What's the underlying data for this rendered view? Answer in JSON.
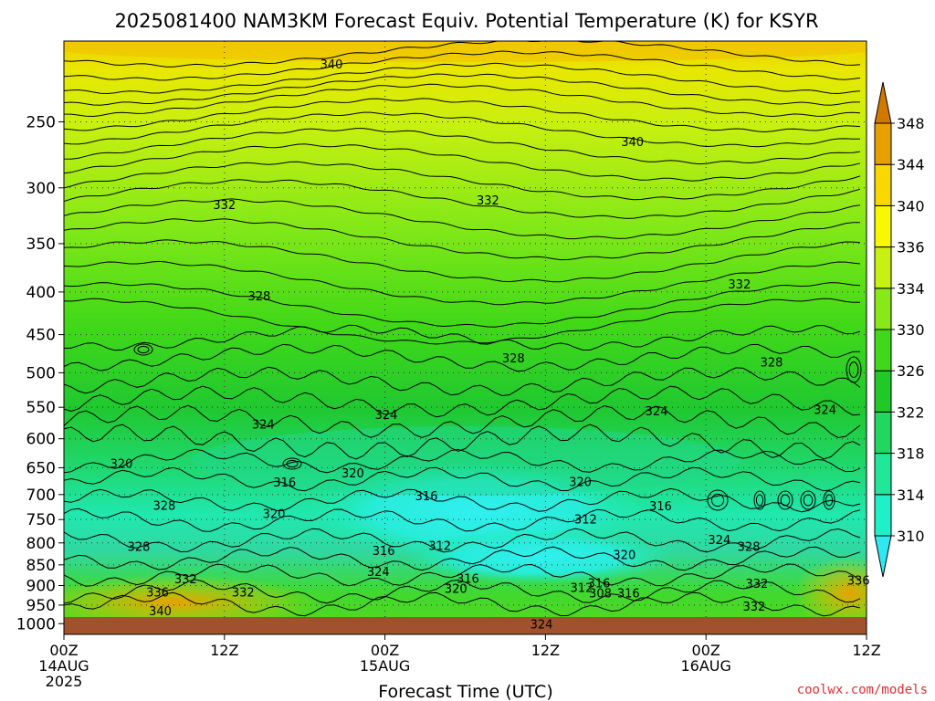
{
  "chart_data": {
    "type": "heatmap",
    "title": "2025081400 NAM3KM Forecast Equiv. Potential Temperature (K) for KSYR",
    "xlabel": "Forecast Time (UTC)",
    "ylabel": "",
    "y_axis": {
      "ticks": [
        250,
        300,
        350,
        400,
        450,
        500,
        550,
        600,
        650,
        700,
        750,
        800,
        850,
        900,
        950,
        1000
      ],
      "range": [
        200,
        1030
      ]
    },
    "x_axis": {
      "range_hours": [
        0,
        60
      ],
      "ticks": [
        {
          "hour": 0,
          "lines": [
            "00Z",
            "14AUG",
            "2025"
          ]
        },
        {
          "hour": 12,
          "lines": [
            "12Z"
          ]
        },
        {
          "hour": 24,
          "lines": [
            "00Z",
            "15AUG"
          ]
        },
        {
          "hour": 36,
          "lines": [
            "12Z"
          ]
        },
        {
          "hour": 48,
          "lines": [
            "00Z",
            "16AUG"
          ]
        },
        {
          "hour": 60,
          "lines": [
            "12Z"
          ]
        }
      ]
    },
    "grid": true,
    "colorbar": {
      "levels": [
        310,
        314,
        318,
        322,
        326,
        330,
        334,
        336,
        340,
        344,
        348
      ],
      "colors": [
        "#30e8f0",
        "#20f0c8",
        "#20e898",
        "#20d860",
        "#20c828",
        "#40d818",
        "#88e818",
        "#c8f010",
        "#f8f800",
        "#f8d800",
        "#e8a000",
        "#d07800"
      ],
      "extend": "both"
    },
    "contour_labels": [
      {
        "value": "340",
        "hour": 20.0,
        "p": 213
      },
      {
        "value": "340",
        "hour": 42.5,
        "p": 264
      },
      {
        "value": "332",
        "hour": 12.0,
        "p": 314
      },
      {
        "value": "332",
        "hour": 31.7,
        "p": 310
      },
      {
        "value": "332",
        "hour": 50.5,
        "p": 391
      },
      {
        "value": "328",
        "hour": 14.6,
        "p": 404
      },
      {
        "value": "328",
        "hour": 33.6,
        "p": 480
      },
      {
        "value": "328",
        "hour": 52.9,
        "p": 485
      },
      {
        "value": "324",
        "hour": 14.9,
        "p": 576
      },
      {
        "value": "324",
        "hour": 24.1,
        "p": 561
      },
      {
        "value": "324",
        "hour": 44.3,
        "p": 555
      },
      {
        "value": "324",
        "hour": 56.9,
        "p": 553
      },
      {
        "value": "320",
        "hour": 4.3,
        "p": 642
      },
      {
        "value": "320",
        "hour": 21.6,
        "p": 659
      },
      {
        "value": "320",
        "hour": 38.6,
        "p": 675
      },
      {
        "value": "320",
        "hour": 15.7,
        "p": 737
      },
      {
        "value": "320",
        "hour": 41.9,
        "p": 826
      },
      {
        "value": "320",
        "hour": 29.3,
        "p": 907
      },
      {
        "value": "316",
        "hour": 16.5,
        "p": 676
      },
      {
        "value": "316",
        "hour": 27.1,
        "p": 702
      },
      {
        "value": "316",
        "hour": 44.6,
        "p": 722
      },
      {
        "value": "316",
        "hour": 23.9,
        "p": 817
      },
      {
        "value": "316",
        "hour": 30.2,
        "p": 882
      },
      {
        "value": "316",
        "hour": 40.0,
        "p": 893
      },
      {
        "value": "316",
        "hour": 42.2,
        "p": 918
      },
      {
        "value": "312",
        "hour": 39.0,
        "p": 749
      },
      {
        "value": "312",
        "hour": 28.1,
        "p": 806
      },
      {
        "value": "312",
        "hour": 38.7,
        "p": 904
      },
      {
        "value": "308",
        "hour": 40.1,
        "p": 918
      },
      {
        "value": "324",
        "hour": 49.0,
        "p": 792
      },
      {
        "value": "324",
        "hour": 23.5,
        "p": 865
      },
      {
        "value": "324",
        "hour": 35.7,
        "p": 1000
      },
      {
        "value": "328",
        "hour": 7.5,
        "p": 721
      },
      {
        "value": "328",
        "hour": 5.6,
        "p": 808
      },
      {
        "value": "328",
        "hour": 51.2,
        "p": 808
      },
      {
        "value": "332",
        "hour": 9.1,
        "p": 883
      },
      {
        "value": "332",
        "hour": 13.4,
        "p": 916
      },
      {
        "value": "332",
        "hour": 51.8,
        "p": 894
      },
      {
        "value": "332",
        "hour": 51.6,
        "p": 953
      },
      {
        "value": "336",
        "hour": 7.0,
        "p": 916
      },
      {
        "value": "336",
        "hour": 59.4,
        "p": 886
      },
      {
        "value": "340",
        "hour": 7.2,
        "p": 965
      }
    ]
  },
  "credit": "coolwx.com/models"
}
